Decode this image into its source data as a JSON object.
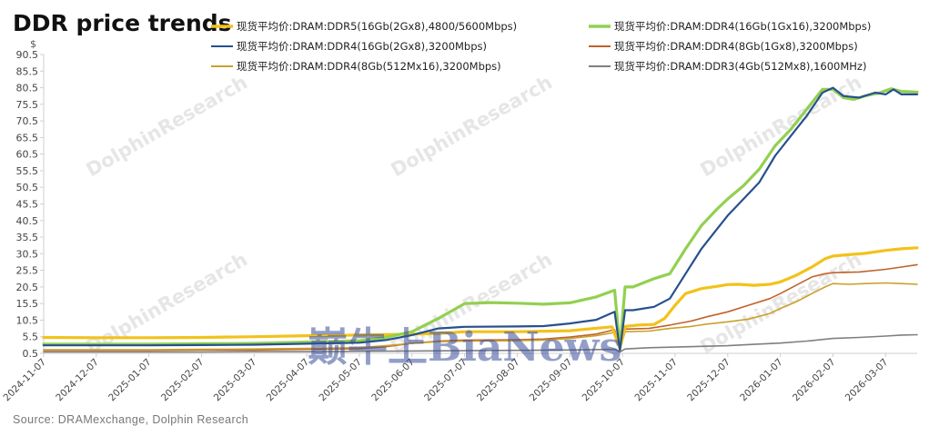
{
  "watermark": "DolphinResearch",
  "stamp_text": "巅牛上BiaNews",
  "chart_data": {
    "type": "line",
    "title": "DDR price trends",
    "y_unit": "$",
    "source": "Source:  DRAMexchange,  Dolphin  Research",
    "ylim": [
      0.5,
      90.5
    ],
    "yticks": [
      0.5,
      5.5,
      10.5,
      15.5,
      20.5,
      25.5,
      30.5,
      35.5,
      40.5,
      45.5,
      50.5,
      55.5,
      60.5,
      65.5,
      70.5,
      75.5,
      80.5,
      85.5,
      90.5
    ],
    "ytick_labels": [
      "0.5",
      "5.5",
      "10.5",
      "15.5",
      "20.5",
      "25.5",
      "30.5",
      "35.5",
      "40.5",
      "45.5",
      "50.5",
      "55.5",
      "60.5",
      "65.5",
      "70.5",
      "75.5",
      "80.5",
      "85.5",
      "90.5"
    ],
    "x_categories": [
      "2024-11-07",
      "2024-12-07",
      "2025-01-07",
      "2025-02-07",
      "2025-03-07",
      "2025-04-07",
      "2025-05-07",
      "2025-06-07",
      "2025-07-07",
      "2025-08-07",
      "2025-09-07",
      "2025-10-07",
      "2025-11-07",
      "2025-12-07",
      "2026-01-07",
      "2026-02-07",
      "2026-03-07"
    ],
    "x_range_months": [
      0,
      16.6
    ],
    "grid": false,
    "legend_position": "top",
    "series": [
      {
        "name": "现货平均价:DRAM:DDR5(16Gb(2Gx8),4800/5600Mbps)",
        "color": "#f2c21b",
        "width": 3.2,
        "points": [
          [
            0,
            5.3
          ],
          [
            1,
            5.2
          ],
          [
            2,
            5.2
          ],
          [
            3,
            5.3
          ],
          [
            4,
            5.5
          ],
          [
            5,
            5.8
          ],
          [
            6,
            6.0
          ],
          [
            7,
            6.3
          ],
          [
            7.5,
            6.5
          ],
          [
            8,
            7.0
          ],
          [
            9,
            7.0
          ],
          [
            10,
            7.3
          ],
          [
            10.8,
            8.5
          ],
          [
            10.95,
            2.0
          ],
          [
            11.05,
            8.6
          ],
          [
            11.3,
            9.0
          ],
          [
            11.6,
            9.2
          ],
          [
            11.8,
            11.0
          ],
          [
            12.0,
            15.0
          ],
          [
            12.2,
            18.5
          ],
          [
            12.5,
            20.0
          ],
          [
            12.8,
            20.7
          ],
          [
            13.0,
            21.2
          ],
          [
            13.2,
            21.3
          ],
          [
            13.5,
            21.0
          ],
          [
            13.8,
            21.3
          ],
          [
            14.0,
            22.0
          ],
          [
            14.3,
            24.0
          ],
          [
            14.6,
            26.5
          ],
          [
            14.85,
            29.0
          ],
          [
            15.0,
            29.8
          ],
          [
            15.3,
            30.2
          ],
          [
            15.6,
            30.6
          ],
          [
            16.0,
            31.5
          ],
          [
            16.3,
            32.0
          ],
          [
            16.6,
            32.3
          ]
        ]
      },
      {
        "name": "现货平均价:DRAM:DDR4(16Gb(1Gx16),3200Mbps)",
        "color": "#92d050",
        "width": 3.2,
        "points": [
          [
            0,
            3.3
          ],
          [
            1,
            3.3
          ],
          [
            2,
            3.3
          ],
          [
            3,
            3.4
          ],
          [
            4,
            3.5
          ],
          [
            5,
            3.9
          ],
          [
            6,
            4.3
          ],
          [
            6.5,
            5.3
          ],
          [
            7,
            7.0
          ],
          [
            7.5,
            11.0
          ],
          [
            8,
            15.5
          ],
          [
            8.5,
            15.8
          ],
          [
            9,
            15.6
          ],
          [
            9.5,
            15.3
          ],
          [
            10,
            15.7
          ],
          [
            10.5,
            17.5
          ],
          [
            10.85,
            19.5
          ],
          [
            10.95,
            2.0
          ],
          [
            11.05,
            20.5
          ],
          [
            11.2,
            20.5
          ],
          [
            11.6,
            23.0
          ],
          [
            11.9,
            24.5
          ],
          [
            12.2,
            32.0
          ],
          [
            12.5,
            39.0
          ],
          [
            12.8,
            44.0
          ],
          [
            13.0,
            47.0
          ],
          [
            13.3,
            51.0
          ],
          [
            13.6,
            56.0
          ],
          [
            13.9,
            63.0
          ],
          [
            14.2,
            68.0
          ],
          [
            14.5,
            74.0
          ],
          [
            14.8,
            80.0
          ],
          [
            15.0,
            80.0
          ],
          [
            15.2,
            77.5
          ],
          [
            15.4,
            77.0
          ],
          [
            15.6,
            78.0
          ],
          [
            15.9,
            79.0
          ],
          [
            16.1,
            80.2
          ],
          [
            16.3,
            79.4
          ],
          [
            16.6,
            79.2
          ]
        ]
      },
      {
        "name": "现货平均价:DRAM:DDR4(16Gb(2Gx8),3200Mbps)",
        "color": "#27508e",
        "width": 2.2,
        "points": [
          [
            0,
            2.9
          ],
          [
            1,
            2.9
          ],
          [
            2,
            2.9
          ],
          [
            3,
            3.0
          ],
          [
            4,
            3.1
          ],
          [
            5,
            3.4
          ],
          [
            6,
            3.7
          ],
          [
            6.5,
            4.5
          ],
          [
            7,
            6.0
          ],
          [
            7.5,
            8.0
          ],
          [
            8,
            8.5
          ],
          [
            9,
            8.6
          ],
          [
            9.5,
            8.7
          ],
          [
            10,
            9.5
          ],
          [
            10.5,
            10.6
          ],
          [
            10.85,
            13.0
          ],
          [
            10.95,
            1.5
          ],
          [
            11.05,
            13.5
          ],
          [
            11.2,
            13.5
          ],
          [
            11.6,
            14.5
          ],
          [
            11.9,
            17.0
          ],
          [
            12.2,
            24.5
          ],
          [
            12.5,
            32.0
          ],
          [
            12.8,
            38.0
          ],
          [
            13.0,
            42.0
          ],
          [
            13.3,
            47.0
          ],
          [
            13.6,
            52.0
          ],
          [
            13.9,
            60.0
          ],
          [
            14.2,
            66.0
          ],
          [
            14.5,
            72.0
          ],
          [
            14.8,
            79.0
          ],
          [
            15.0,
            80.5
          ],
          [
            15.2,
            78.0
          ],
          [
            15.5,
            77.5
          ],
          [
            15.8,
            79.0
          ],
          [
            16.0,
            78.5
          ],
          [
            16.15,
            80.0
          ],
          [
            16.3,
            78.5
          ],
          [
            16.6,
            78.5
          ]
        ]
      },
      {
        "name": "现货平均价:DRAM:DDR4(8Gb(1Gx8),3200Mbps)",
        "color": "#c0622a",
        "width": 1.6,
        "points": [
          [
            0,
            1.4
          ],
          [
            1,
            1.4
          ],
          [
            2,
            1.4
          ],
          [
            3,
            1.5
          ],
          [
            4,
            1.5
          ],
          [
            5,
            1.7
          ],
          [
            6,
            1.9
          ],
          [
            6.5,
            2.5
          ],
          [
            7,
            3.5
          ],
          [
            7.5,
            4.2
          ],
          [
            8,
            4.5
          ],
          [
            9,
            4.6
          ],
          [
            9.5,
            4.8
          ],
          [
            10,
            5.4
          ],
          [
            10.5,
            6.3
          ],
          [
            10.85,
            7.6
          ],
          [
            10.95,
            1.2
          ],
          [
            11.05,
            7.8
          ],
          [
            11.5,
            8.0
          ],
          [
            11.9,
            9.0
          ],
          [
            12.3,
            10.2
          ],
          [
            12.6,
            11.5
          ],
          [
            13.0,
            13.0
          ],
          [
            13.4,
            15.0
          ],
          [
            13.8,
            17.0
          ],
          [
            14.0,
            18.5
          ],
          [
            14.3,
            21.0
          ],
          [
            14.6,
            23.5
          ],
          [
            14.85,
            24.5
          ],
          [
            15.0,
            24.8
          ],
          [
            15.5,
            25.0
          ],
          [
            16.0,
            25.8
          ],
          [
            16.3,
            26.5
          ],
          [
            16.6,
            27.2
          ]
        ]
      },
      {
        "name": "现货平均价:DRAM:DDR4(8Gb(512Mx16),3200Mbps)",
        "color": "#c9a12a",
        "width": 1.6,
        "points": [
          [
            0,
            1.6
          ],
          [
            1,
            1.6
          ],
          [
            2,
            1.6
          ],
          [
            3,
            1.7
          ],
          [
            4,
            1.8
          ],
          [
            5,
            2.0
          ],
          [
            6,
            2.2
          ],
          [
            6.5,
            2.8
          ],
          [
            7,
            3.5
          ],
          [
            7.5,
            4.0
          ],
          [
            8,
            4.2
          ],
          [
            9,
            4.3
          ],
          [
            9.5,
            4.5
          ],
          [
            10,
            5.0
          ],
          [
            10.5,
            5.8
          ],
          [
            10.85,
            6.8
          ],
          [
            10.95,
            1.5
          ],
          [
            11.05,
            7.0
          ],
          [
            11.5,
            7.2
          ],
          [
            11.9,
            8.0
          ],
          [
            12.3,
            8.6
          ],
          [
            12.6,
            9.3
          ],
          [
            13.0,
            10.0
          ],
          [
            13.4,
            10.8
          ],
          [
            13.8,
            12.5
          ],
          [
            14.0,
            14.0
          ],
          [
            14.3,
            16.0
          ],
          [
            14.6,
            18.5
          ],
          [
            14.85,
            20.5
          ],
          [
            15.0,
            21.5
          ],
          [
            15.3,
            21.3
          ],
          [
            15.6,
            21.5
          ],
          [
            16.0,
            21.7
          ],
          [
            16.3,
            21.5
          ],
          [
            16.6,
            21.3
          ]
        ]
      },
      {
        "name": "现货平均价:DRAM:DDR3(4Gb(512Mx8),1600MHz)",
        "color": "#7f7f7f",
        "width": 1.6,
        "points": [
          [
            0,
            0.9
          ],
          [
            1,
            0.9
          ],
          [
            2,
            0.9
          ],
          [
            3,
            0.9
          ],
          [
            4,
            1.0
          ],
          [
            5,
            1.0
          ],
          [
            6,
            1.1
          ],
          [
            7,
            1.2
          ],
          [
            8,
            1.3
          ],
          [
            9,
            1.4
          ],
          [
            10,
            1.5
          ],
          [
            10.85,
            1.7
          ],
          [
            10.95,
            0.9
          ],
          [
            11.05,
            1.8
          ],
          [
            11.5,
            2.2
          ],
          [
            12,
            2.4
          ],
          [
            12.5,
            2.6
          ],
          [
            13,
            2.8
          ],
          [
            13.5,
            3.2
          ],
          [
            14,
            3.6
          ],
          [
            14.5,
            4.2
          ],
          [
            15,
            5.0
          ],
          [
            15.5,
            5.3
          ],
          [
            16,
            5.7
          ],
          [
            16.3,
            6.0
          ],
          [
            16.6,
            6.1
          ]
        ]
      }
    ]
  }
}
